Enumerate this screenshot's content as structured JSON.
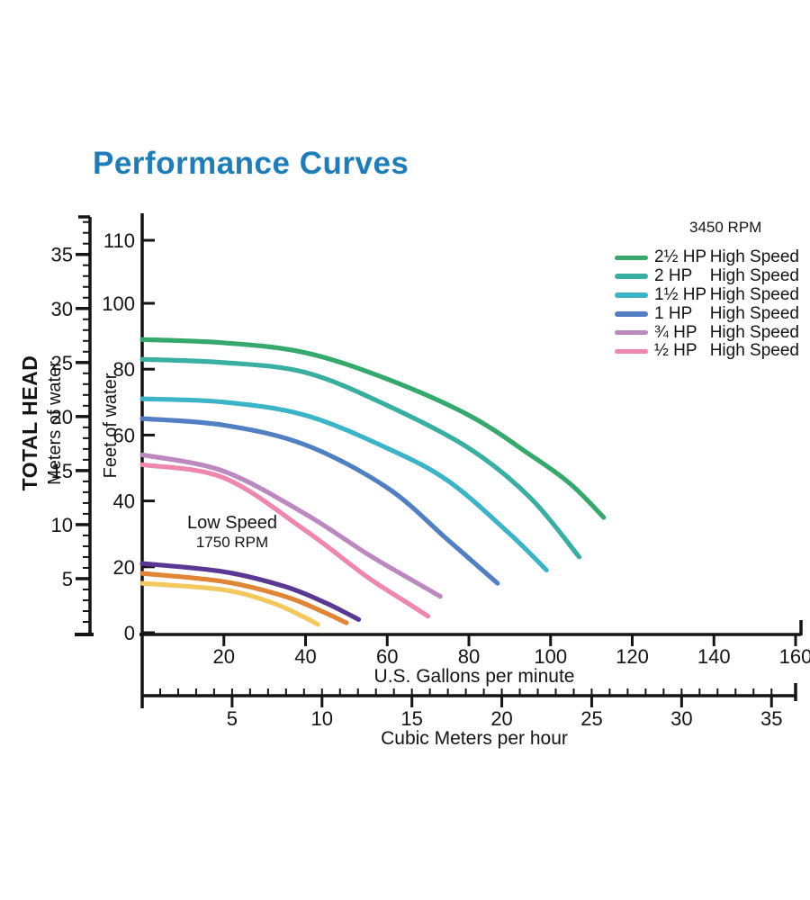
{
  "title": "Performance Curves",
  "title_color": "#1d7cba",
  "axis_color": "#141414",
  "annotations": {
    "low_speed": "Low Speed",
    "low_speed_rpm": "1750 RPM"
  },
  "legend": {
    "header": "3450 RPM",
    "entries": [
      {
        "hp": "2½ HP",
        "speed": "High Speed",
        "color": "#35a86b"
      },
      {
        "hp": "2 HP",
        "speed": "High Speed",
        "color": "#39afa2"
      },
      {
        "hp": "1½ HP",
        "speed": "High Speed",
        "color": "#3cb4c7"
      },
      {
        "hp": "1 HP",
        "speed": "High Speed",
        "color": "#527fc4"
      },
      {
        "hp": "¾ HP",
        "speed": "High Speed",
        "color": "#bb88c0"
      },
      {
        "hp": "½ HP",
        "speed": "High Speed",
        "color": "#ee86ae"
      }
    ]
  },
  "chart_data": {
    "type": "line",
    "title": "Performance Curves",
    "grid": false,
    "legend_position": "top-right",
    "x_axes": [
      {
        "label": "U.S. Gallons per minute",
        "unit": "GPM",
        "range": [
          0,
          161
        ],
        "ticks": [
          20,
          40,
          60,
          80,
          100,
          120,
          140,
          160
        ]
      },
      {
        "label": "Cubic Meters per hour",
        "unit": "m3/h",
        "range": [
          0,
          36
        ],
        "ticks": [
          5,
          10,
          15,
          20,
          25,
          30,
          35
        ],
        "minor_tick_step": 1
      }
    ],
    "y_axes": [
      {
        "label": "Feet of water",
        "unit": "ft",
        "range": [
          0,
          120
        ],
        "ticks": [
          0,
          20,
          40,
          60,
          80,
          100,
          110
        ]
      },
      {
        "label": "TOTAL HEAD",
        "sublabel": "Meters of water",
        "unit": "m",
        "range": [
          0,
          38
        ],
        "ticks": [
          5,
          10,
          15,
          20,
          25,
          30,
          35
        ],
        "minor_tick_step": 1
      }
    ],
    "series": [
      {
        "id": "hp2_5",
        "name": "2½ HP High Speed",
        "rpm": 3450,
        "color": "#35a86b",
        "points": [
          [
            0,
            89
          ],
          [
            20,
            88
          ],
          [
            40,
            85
          ],
          [
            60,
            77
          ],
          [
            80,
            66
          ],
          [
            95,
            54
          ],
          [
            105,
            45
          ],
          [
            113,
            35
          ]
        ]
      },
      {
        "id": "hp2",
        "name": "2 HP High Speed",
        "rpm": 3450,
        "color": "#39afa2",
        "points": [
          [
            0,
            83
          ],
          [
            20,
            82
          ],
          [
            40,
            79
          ],
          [
            60,
            69
          ],
          [
            80,
            56
          ],
          [
            95,
            41
          ],
          [
            107,
            23
          ]
        ]
      },
      {
        "id": "hp1_5",
        "name": "1½ HP High Speed",
        "rpm": 3450,
        "color": "#3cb4c7",
        "points": [
          [
            0,
            71
          ],
          [
            20,
            70
          ],
          [
            40,
            66
          ],
          [
            60,
            56
          ],
          [
            75,
            46
          ],
          [
            90,
            30
          ],
          [
            99,
            19
          ]
        ]
      },
      {
        "id": "hp1",
        "name": "1 HP High Speed",
        "rpm": 3450,
        "color": "#527fc4",
        "points": [
          [
            0,
            65
          ],
          [
            20,
            63
          ],
          [
            40,
            57
          ],
          [
            60,
            44
          ],
          [
            75,
            28
          ],
          [
            87,
            15
          ]
        ]
      },
      {
        "id": "hp0_75",
        "name": "¾ HP High Speed",
        "rpm": 3450,
        "color": "#bb88c0",
        "points": [
          [
            0,
            54
          ],
          [
            20,
            49
          ],
          [
            40,
            36
          ],
          [
            55,
            24
          ],
          [
            66,
            16
          ],
          [
            73,
            11
          ]
        ]
      },
      {
        "id": "hp0_5",
        "name": "½ HP High Speed",
        "rpm": 3450,
        "color": "#ee86ae",
        "points": [
          [
            0,
            51
          ],
          [
            20,
            47
          ],
          [
            40,
            31
          ],
          [
            55,
            17
          ],
          [
            65,
            9
          ],
          [
            70,
            5
          ]
        ]
      },
      {
        "id": "low_purple",
        "name": "Low Speed 1750 RPM (purple)",
        "rpm": 1750,
        "color": "#5b3794",
        "points": [
          [
            0,
            21
          ],
          [
            20,
            18.5
          ],
          [
            35,
            14
          ],
          [
            45,
            9
          ],
          [
            53,
            4
          ]
        ]
      },
      {
        "id": "low_orange",
        "name": "Low Speed 1750 RPM (orange)",
        "rpm": 1750,
        "color": "#e08436",
        "points": [
          [
            0,
            18
          ],
          [
            20,
            15.5
          ],
          [
            35,
            11
          ],
          [
            44,
            6.5
          ],
          [
            50,
            3
          ]
        ]
      },
      {
        "id": "low_yellow",
        "name": "Low Speed 1750 RPM (yellow)",
        "rpm": 1750,
        "color": "#f3c95e",
        "points": [
          [
            0,
            15
          ],
          [
            20,
            13
          ],
          [
            32,
            9
          ],
          [
            40,
            4.5
          ],
          [
            43,
            2.5
          ]
        ]
      }
    ]
  }
}
